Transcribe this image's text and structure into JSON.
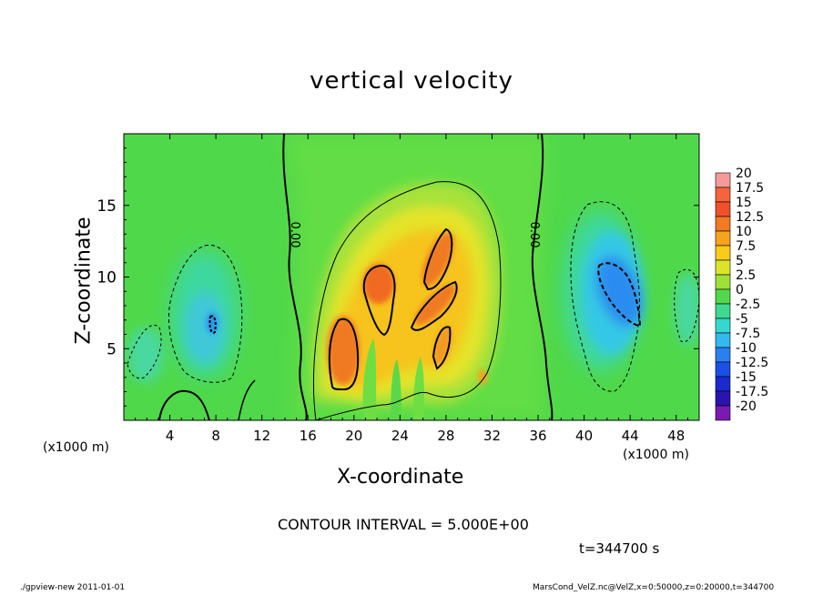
{
  "chart_data": {
    "type": "heatmap",
    "title": "vertical velocity",
    "xlabel": "X-coordinate",
    "ylabel": "Z-coordinate",
    "x_unit_label": "(x1000 m)",
    "xlim": [
      0,
      50
    ],
    "ylim": [
      0,
      20
    ],
    "x_ticks": [
      "4",
      "8",
      "12",
      "16",
      "20",
      "24",
      "28",
      "32",
      "36",
      "40",
      "44",
      "48"
    ],
    "y_ticks": [
      "5",
      "10",
      "15"
    ],
    "x_tick_values": [
      4,
      8,
      12,
      16,
      20,
      24,
      28,
      32,
      36,
      40,
      44,
      48
    ],
    "y_tick_values": [
      5,
      10,
      15
    ],
    "colorbar": {
      "labels": [
        "20",
        "17.5",
        "15",
        "12.5",
        "10",
        "7.5",
        "5",
        "2.5",
        "0",
        "-2.5",
        "-5",
        "-7.5",
        "-10",
        "-12.5",
        "-15",
        "-17.5",
        "-20"
      ],
      "colors": [
        "#f59a9a",
        "#f5643c",
        "#f0502a",
        "#f27a22",
        "#f7a31c",
        "#f9cc1c",
        "#d9e42a",
        "#9ee03a",
        "#52d84a",
        "#3ed88f",
        "#34d8d0",
        "#34b8f0",
        "#2a80f0",
        "#1a50e6",
        "#1a2ad0",
        "#2a14b0",
        "#7a1ab0"
      ]
    },
    "contour_labels": [
      "0.00",
      "0.00"
    ],
    "features": [
      {
        "kind": "updraft",
        "x": 19,
        "z": 6,
        "value": 12.5
      },
      {
        "kind": "updraft",
        "x": 22,
        "z": 9.5,
        "value": 12.5
      },
      {
        "kind": "updraft",
        "x": 27.5,
        "z": 10.5,
        "value": 12.5
      },
      {
        "kind": "updraft",
        "x": 27,
        "z": 7.5,
        "value": 12.5
      },
      {
        "kind": "updraft",
        "x": 27.5,
        "z": 5,
        "value": 10
      },
      {
        "kind": "downdraft",
        "x": 7.5,
        "z": 6.5,
        "value": -7.5
      },
      {
        "kind": "downdraft",
        "x": 43,
        "z": 9,
        "value": -10
      }
    ]
  },
  "contour_interval": "CONTOUR INTERVAL = 5.000E+00",
  "time_label": "t=344700 s",
  "footer_left": "./gpview-new  2011-01-01",
  "footer_right": "MarsCond_VelZ.nc@VelZ,x=0:50000,z=0:20000,t=344700"
}
